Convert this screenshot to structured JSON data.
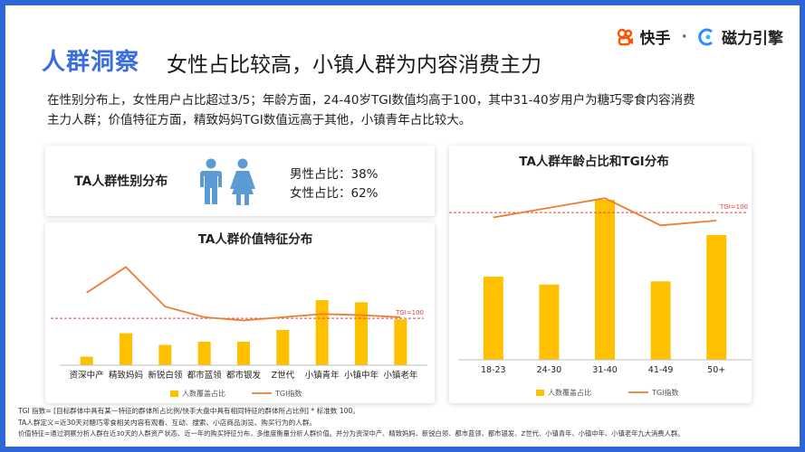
{
  "header": {
    "tag": "人群洞察",
    "title": "女性占比较高，小镇人群为内容消费主力"
  },
  "brand": {
    "name1": "快手",
    "separator": "·",
    "name2": "磁力引擎"
  },
  "intro": {
    "line1": "在性别分布上，女性用户占比超过3/5；年龄方面，24-40岁TGI数值均高于100，其中31-40岁用户为糖巧零食内容消费",
    "line2": "主力人群；价值特征方面，精致妈妈TGI数值远高于其他，小镇青年占比较大。"
  },
  "gender_card": {
    "title": "TA人群性别分布",
    "male_label": "男性占比：",
    "male_value": "38%",
    "female_label": "女性占比：",
    "female_value": "62%"
  },
  "colors": {
    "bar": "#ffc000",
    "line": "#ed7d31",
    "ref": "#e0463c",
    "male": "#5b9bd5",
    "female": "#5b9bd5",
    "accent": "#3a6de0"
  },
  "chart_data": [
    {
      "type": "bar+line",
      "title": "TA人群价值特征分布",
      "categories": [
        "资深中产",
        "精致妈妈",
        "新锐白领",
        "都市蓝领",
        "都市银发",
        "Z世代",
        "小镇青年",
        "小镇中年",
        "小镇老年"
      ],
      "series": [
        {
          "name": "人数覆盖占比",
          "kind": "bar",
          "values": [
            8,
            30,
            19,
            22,
            22,
            33,
            61,
            59,
            43
          ]
        },
        {
          "name": "TGI指数",
          "kind": "line",
          "values": [
            68,
            92,
            55,
            45,
            42,
            45,
            48,
            47,
            45
          ]
        }
      ],
      "ref_line": {
        "label": "TGI=100",
        "value": 44
      },
      "ylim": [
        0,
        100
      ]
    },
    {
      "type": "bar+line",
      "title": "TA人群年龄占比和TGI分布",
      "categories": [
        "18-23",
        "24-30",
        "31-40",
        "41-49",
        "50+"
      ],
      "series": [
        {
          "name": "人数覆盖占比",
          "kind": "bar",
          "values": [
            52,
            47,
            100,
            49,
            78
          ]
        },
        {
          "name": "TGI指数",
          "kind": "line",
          "values": [
            89,
            95,
            101,
            84,
            87
          ]
        }
      ],
      "ref_line": {
        "label": "TGI=100",
        "value": 92
      },
      "ylim": [
        0,
        100
      ]
    }
  ],
  "footnotes": {
    "line1": "TGI 指数= [目标群体中具有某一特征的群体所占比例/快手大盘中具有相同特征的群体所占比例] * 标准数 100。",
    "line2": "TA人群定义=近30天对糖巧零食相关内容有观看、互动、搜索、小店商品浏览、购买行为的人群。",
    "line3": "价值特征=通过洞察分析人群在近30天的人群资产状态、近一年的购买特征分布，多维度衡量分析人群价值。并分为资深中产、精致妈妈、新锐白领、都市蓝领、都市银发、Z世代、小镇青年、小镇中年、小镇老年九大消费人群。"
  }
}
